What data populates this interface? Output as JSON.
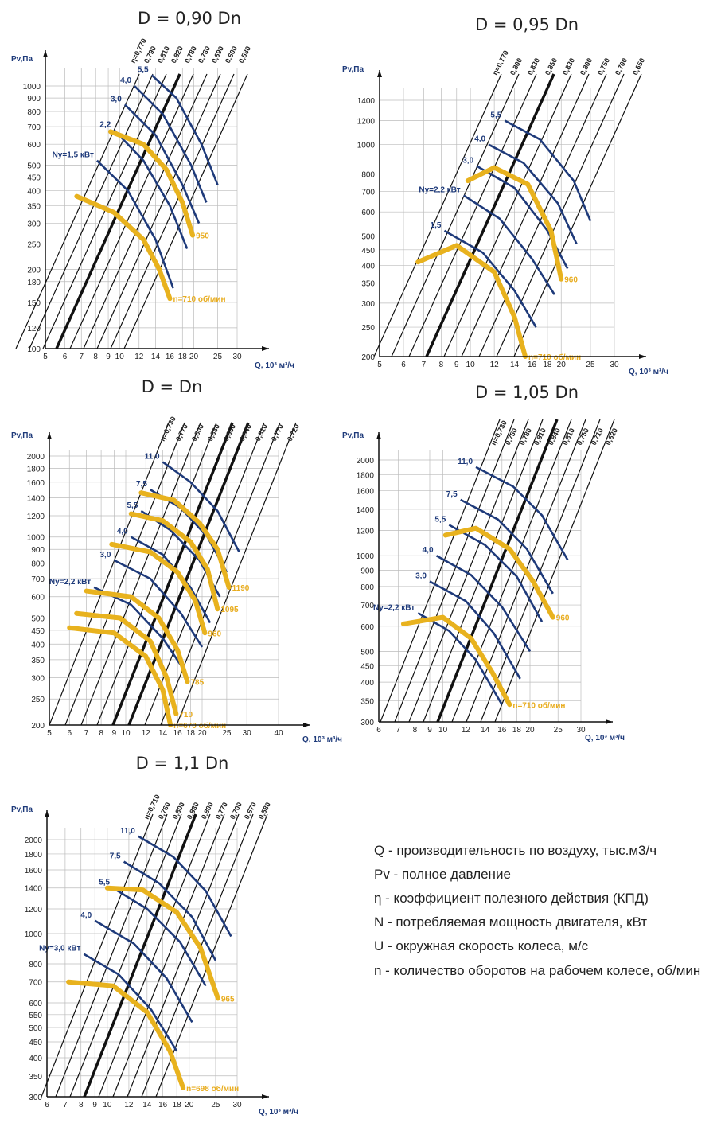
{
  "colors": {
    "grid": "#bcbcbc",
    "eff": "#111111",
    "power": "#1e3a7a",
    "speed": "#e8b21e",
    "axis": "#111111"
  },
  "legend": [
    "Q - производительность по воздуху, тыс.м3/ч",
    "Pv - полное давление",
    "η - коэффициент полезного действия (КПД)",
    "N - потребляемая мощность двигателя, кВт",
    "U - окружная скорость колеса, м/с",
    "n - количество оборотов на рабочем колесе, об/мин"
  ],
  "chart_data": [
    {
      "type": "line",
      "title": "D = 0,90 Dn",
      "ylabel": "Pv,Па",
      "xlabel": "Q, 10³ м³/ч",
      "x_ticks": [
        "5",
        "6",
        "7",
        "8",
        "9",
        "10",
        "12",
        "14",
        "16",
        "18",
        "20",
        "25",
        "30"
      ],
      "y_ticks": [
        "100",
        "120",
        "150",
        "180",
        "200",
        "250",
        "300",
        "350",
        "400",
        "450",
        "500",
        "600",
        "700",
        "800",
        "900",
        "1000"
      ],
      "efficiency_lines": [
        "η=0,770",
        "0,790",
        "0,810",
        "0,820",
        "0,780",
        "0,730",
        "0,690",
        "0,600",
        "0,530"
      ],
      "power_curves": [
        {
          "label": "Ny=1,5 кВт",
          "points": [
            [
              8.1,
              520
            ],
            [
              10.8,
              400
            ],
            [
              14,
              260
            ],
            [
              16.5,
              170
            ]
          ]
        },
        {
          "label": "2,2",
          "points": [
            [
              9.5,
              680
            ],
            [
              12.5,
              520
            ],
            [
              16,
              350
            ],
            [
              18.8,
              240
            ]
          ]
        },
        {
          "label": "3,0",
          "points": [
            [
              10.5,
              850
            ],
            [
              14,
              650
            ],
            [
              18,
              420
            ],
            [
              21,
              300
            ]
          ]
        },
        {
          "label": "4,0",
          "points": [
            [
              11.5,
              1000
            ],
            [
              15,
              780
            ],
            [
              19.5,
              500
            ],
            [
              22.5,
              360
            ]
          ]
        },
        {
          "label": "5,5",
          "points": [
            [
              13.5,
              1100
            ],
            [
              17,
              900
            ],
            [
              21.5,
              600
            ],
            [
              25,
              420
            ]
          ]
        }
      ],
      "speed_curves": [
        {
          "label": "n=710 об/мин",
          "points": [
            [
              6.7,
              380
            ],
            [
              9.5,
              330
            ],
            [
              12.5,
              260
            ],
            [
              14.5,
              200
            ],
            [
              16,
              155
            ]
          ]
        },
        {
          "label": "950",
          "points": [
            [
              9.2,
              670
            ],
            [
              12.5,
              600
            ],
            [
              15.5,
              480
            ],
            [
              18,
              360
            ],
            [
              19.8,
              270
            ]
          ]
        }
      ]
    },
    {
      "type": "line",
      "title": "D = 0,95 Dn",
      "ylabel": "Pv,Па",
      "xlabel": "Q, 10³ м³/ч",
      "x_ticks": [
        "5",
        "6",
        "7",
        "8",
        "9",
        "10",
        "12",
        "14",
        "16",
        "18",
        "20",
        "25",
        "30"
      ],
      "y_ticks": [
        "200",
        "250",
        "300",
        "350",
        "400",
        "450",
        "500",
        "600",
        "700",
        "800",
        "1000",
        "1200",
        "1400"
      ],
      "efficiency_lines": [
        "η=0,770",
        "0,800",
        "0,830",
        "0,850",
        "0,830",
        "0,800",
        "0,750",
        "0,700",
        "0,650"
      ],
      "power_curves": [
        {
          "label": "1,5",
          "points": [
            [
              8.2,
              520
            ],
            [
              11,
              440
            ],
            [
              14,
              330
            ],
            [
              16.5,
              250
            ]
          ]
        },
        {
          "label": "Ny=2,2 кВт",
          "points": [
            [
              9.5,
              680
            ],
            [
              12.5,
              570
            ],
            [
              16,
              420
            ],
            [
              19,
              320
            ]
          ]
        },
        {
          "label": "3,0",
          "points": [
            [
              10.5,
              850
            ],
            [
              14,
              720
            ],
            [
              18,
              520
            ],
            [
              21,
              390
            ]
          ]
        },
        {
          "label": "4,0",
          "points": [
            [
              11.5,
              1000
            ],
            [
              15,
              870
            ],
            [
              19.5,
              640
            ],
            [
              22.5,
              470
            ]
          ]
        },
        {
          "label": "5,5",
          "points": [
            [
              13,
              1200
            ],
            [
              17,
              1040
            ],
            [
              22,
              760
            ],
            [
              25,
              560
            ]
          ]
        }
      ],
      "speed_curves": [
        {
          "label": "n=710 об/мин",
          "points": [
            [
              6.7,
              410
            ],
            [
              9,
              465
            ],
            [
              12,
              380
            ],
            [
              14,
              270
            ],
            [
              15.2,
              200
            ]
          ]
        },
        {
          "label": "960",
          "points": [
            [
              9.8,
              760
            ],
            [
              12,
              840
            ],
            [
              15.5,
              740
            ],
            [
              18.5,
              520
            ],
            [
              20,
              360
            ]
          ]
        }
      ]
    },
    {
      "type": "line",
      "title": "D = Dn",
      "ylabel": "Pv,Па",
      "xlabel": "Q, 10³ м³/ч",
      "x_ticks": [
        "5",
        "6",
        "7",
        "8",
        "9",
        "10",
        "12",
        "14",
        "16",
        "18",
        "20",
        "25",
        "30",
        "40"
      ],
      "y_ticks": [
        "200",
        "250",
        "300",
        "350",
        "400",
        "450",
        "500",
        "600",
        "700",
        "800",
        "900",
        "1000",
        "1200",
        "1400",
        "1600",
        "1800",
        "2000"
      ],
      "efficiency_lines": [
        "η=0,730",
        "0,770",
        "0,800",
        "0,830",
        "0,850",
        "0,840",
        "0,810",
        "0,770",
        "0,720"
      ],
      "power_curves": [
        {
          "label": "Ny=2,2 кВт",
          "points": [
            [
              7.5,
              650
            ],
            [
              10.5,
              560
            ],
            [
              14,
              420
            ],
            [
              17,
              320
            ]
          ]
        },
        {
          "label": "3,0",
          "points": [
            [
              9,
              820
            ],
            [
              12.5,
              700
            ],
            [
              16.5,
              520
            ],
            [
              20,
              390
            ]
          ]
        },
        {
          "label": "4,0",
          "points": [
            [
              10.5,
              1000
            ],
            [
              14,
              860
            ],
            [
              18,
              650
            ],
            [
              21.5,
              480
            ]
          ]
        },
        {
          "label": "5,5",
          "points": [
            [
              11.5,
              1250
            ],
            [
              15,
              1060
            ],
            [
              19.5,
              820
            ],
            [
              23.5,
              600
            ]
          ]
        },
        {
          "label": "7,5",
          "points": [
            [
              12.5,
              1500
            ],
            [
              16.5,
              1280
            ],
            [
              21,
              1000
            ],
            [
              25,
              740
            ]
          ]
        },
        {
          "label": "11,0",
          "points": [
            [
              14,
              1900
            ],
            [
              18,
              1600
            ],
            [
              23,
              1250
            ],
            [
              28,
              880
            ]
          ]
        }
      ],
      "speed_curves": [
        {
          "label": "n=670 об/мин",
          "points": [
            [
              6,
              460
            ],
            [
              9,
              440
            ],
            [
              12,
              360
            ],
            [
              14,
              270
            ],
            [
              15,
              200
            ]
          ]
        },
        {
          "label": "710",
          "points": [
            [
              6.4,
              520
            ],
            [
              9.5,
              500
            ],
            [
              12.5,
              410
            ],
            [
              14.5,
              300
            ],
            [
              15.8,
              220
            ]
          ]
        },
        {
          "label": "785",
          "points": [
            [
              7,
              630
            ],
            [
              10.5,
              600
            ],
            [
              13.5,
              500
            ],
            [
              16,
              380
            ],
            [
              17.5,
              290
            ]
          ]
        },
        {
          "label": "960",
          "points": [
            [
              8.8,
              940
            ],
            [
              12.5,
              880
            ],
            [
              16,
              740
            ],
            [
              18.8,
              580
            ],
            [
              20.5,
              440
            ]
          ]
        },
        {
          "label": "1095",
          "points": [
            [
              10.5,
              1220
            ],
            [
              14,
              1150
            ],
            [
              18,
              960
            ],
            [
              21,
              760
            ],
            [
              23,
              540
            ]
          ]
        },
        {
          "label": "1190",
          "points": [
            [
              11.5,
              1460
            ],
            [
              15.5,
              1370
            ],
            [
              19.5,
              1130
            ],
            [
              23,
              900
            ],
            [
              25.5,
              650
            ]
          ]
        }
      ]
    },
    {
      "type": "line",
      "title": "D = 1,05 Dn",
      "ylabel": "Pv,Па",
      "xlabel": "Q, 10³ м³/ч",
      "x_ticks": [
        "6",
        "7",
        "8",
        "9",
        "10",
        "12",
        "14",
        "16",
        "18",
        "20",
        "25",
        "30"
      ],
      "y_ticks": [
        "300",
        "350",
        "400",
        "450",
        "500",
        "600",
        "700",
        "800",
        "900",
        "1000",
        "1200",
        "1400",
        "1600",
        "1800",
        "2000"
      ],
      "efficiency_lines": [
        "η=0,730",
        "0,750",
        "0,780",
        "0,810",
        "0,840",
        "0,810",
        "0,750",
        "0,710",
        "0,620"
      ],
      "power_curves": [
        {
          "label": "Ny=2,2 кВт",
          "points": [
            [
              8.2,
              660
            ],
            [
              10.5,
              580
            ],
            [
              13,
              470
            ],
            [
              16,
              340
            ]
          ]
        },
        {
          "label": "3,0",
          "points": [
            [
              9,
              830
            ],
            [
              12,
              720
            ],
            [
              15,
              570
            ],
            [
              18.5,
              410
            ]
          ]
        },
        {
          "label": "4,0",
          "points": [
            [
              9.5,
              1000
            ],
            [
              12.5,
              870
            ],
            [
              16,
              690
            ],
            [
              20,
              500
            ]
          ]
        },
        {
          "label": "5,5",
          "points": [
            [
              10.5,
              1250
            ],
            [
              14,
              1080
            ],
            [
              18,
              860
            ],
            [
              22,
              620
            ]
          ]
        },
        {
          "label": "7,5",
          "points": [
            [
              11.5,
              1500
            ],
            [
              15.5,
              1300
            ],
            [
              19.5,
              1050
            ],
            [
              24,
              760
            ]
          ]
        },
        {
          "label": "11,0",
          "points": [
            [
              13,
              1900
            ],
            [
              17.5,
              1650
            ],
            [
              22,
              1340
            ],
            [
              27,
              970
            ]
          ]
        }
      ],
      "speed_curves": [
        {
          "label": "n=710 об/мин",
          "points": [
            [
              7.3,
              610
            ],
            [
              10,
              640
            ],
            [
              12.5,
              550
            ],
            [
              14.8,
              430
            ],
            [
              17,
              340
            ]
          ]
        },
        {
          "label": "960",
          "points": [
            [
              10.2,
              1160
            ],
            [
              13,
              1220
            ],
            [
              17,
              1050
            ],
            [
              20.5,
              830
            ],
            [
              24,
              640
            ]
          ]
        }
      ]
    },
    {
      "type": "line",
      "title": "D = 1,1 Dn",
      "ylabel": "Pv,Па",
      "xlabel": "Q, 10³ м³/ч",
      "x_ticks": [
        "6",
        "7",
        "8",
        "9",
        "10",
        "12",
        "14",
        "16",
        "18",
        "20",
        "25",
        "30"
      ],
      "y_ticks": [
        "300",
        "350",
        "400",
        "450",
        "500",
        "550",
        "600",
        "700",
        "800",
        "1000",
        "1200",
        "1400",
        "1600",
        "1800",
        "2000"
      ],
      "efficiency_lines": [
        "η=0,710",
        "0,760",
        "0,800",
        "0,830",
        "0,800",
        "0,770",
        "0,700",
        "0,670",
        "0,580"
      ],
      "power_curves": [
        {
          "label": "Ny=3,0 кВт",
          "points": [
            [
              8.2,
              860
            ],
            [
              11,
              740
            ],
            [
              14.5,
              570
            ],
            [
              18,
              420
            ]
          ]
        },
        {
          "label": "4,0",
          "points": [
            [
              9,
              1100
            ],
            [
              12.5,
              930
            ],
            [
              16.5,
              720
            ],
            [
              20.5,
              520
            ]
          ]
        },
        {
          "label": "5,5",
          "points": [
            [
              10.5,
              1400
            ],
            [
              14,
              1200
            ],
            [
              18.5,
              940
            ],
            [
              23,
              680
            ]
          ]
        },
        {
          "label": "7,5",
          "points": [
            [
              11.5,
              1700
            ],
            [
              15.5,
              1450
            ],
            [
              20.5,
              1130
            ],
            [
              25,
              820
            ]
          ]
        },
        {
          "label": "11,0",
          "points": [
            [
              13,
              2050
            ],
            [
              17.5,
              1760
            ],
            [
              23,
              1370
            ],
            [
              28.5,
              980
            ]
          ]
        }
      ],
      "speed_curves": [
        {
          "label": "n=698 об/мин",
          "points": [
            [
              7.2,
              700
            ],
            [
              10.5,
              680
            ],
            [
              14,
              560
            ],
            [
              17,
              420
            ],
            [
              19,
              320
            ]
          ]
        },
        {
          "label": "965",
          "points": [
            [
              10,
              1400
            ],
            [
              13.5,
              1380
            ],
            [
              18,
              1170
            ],
            [
              22,
              900
            ],
            [
              25.5,
              620
            ]
          ]
        }
      ]
    }
  ]
}
